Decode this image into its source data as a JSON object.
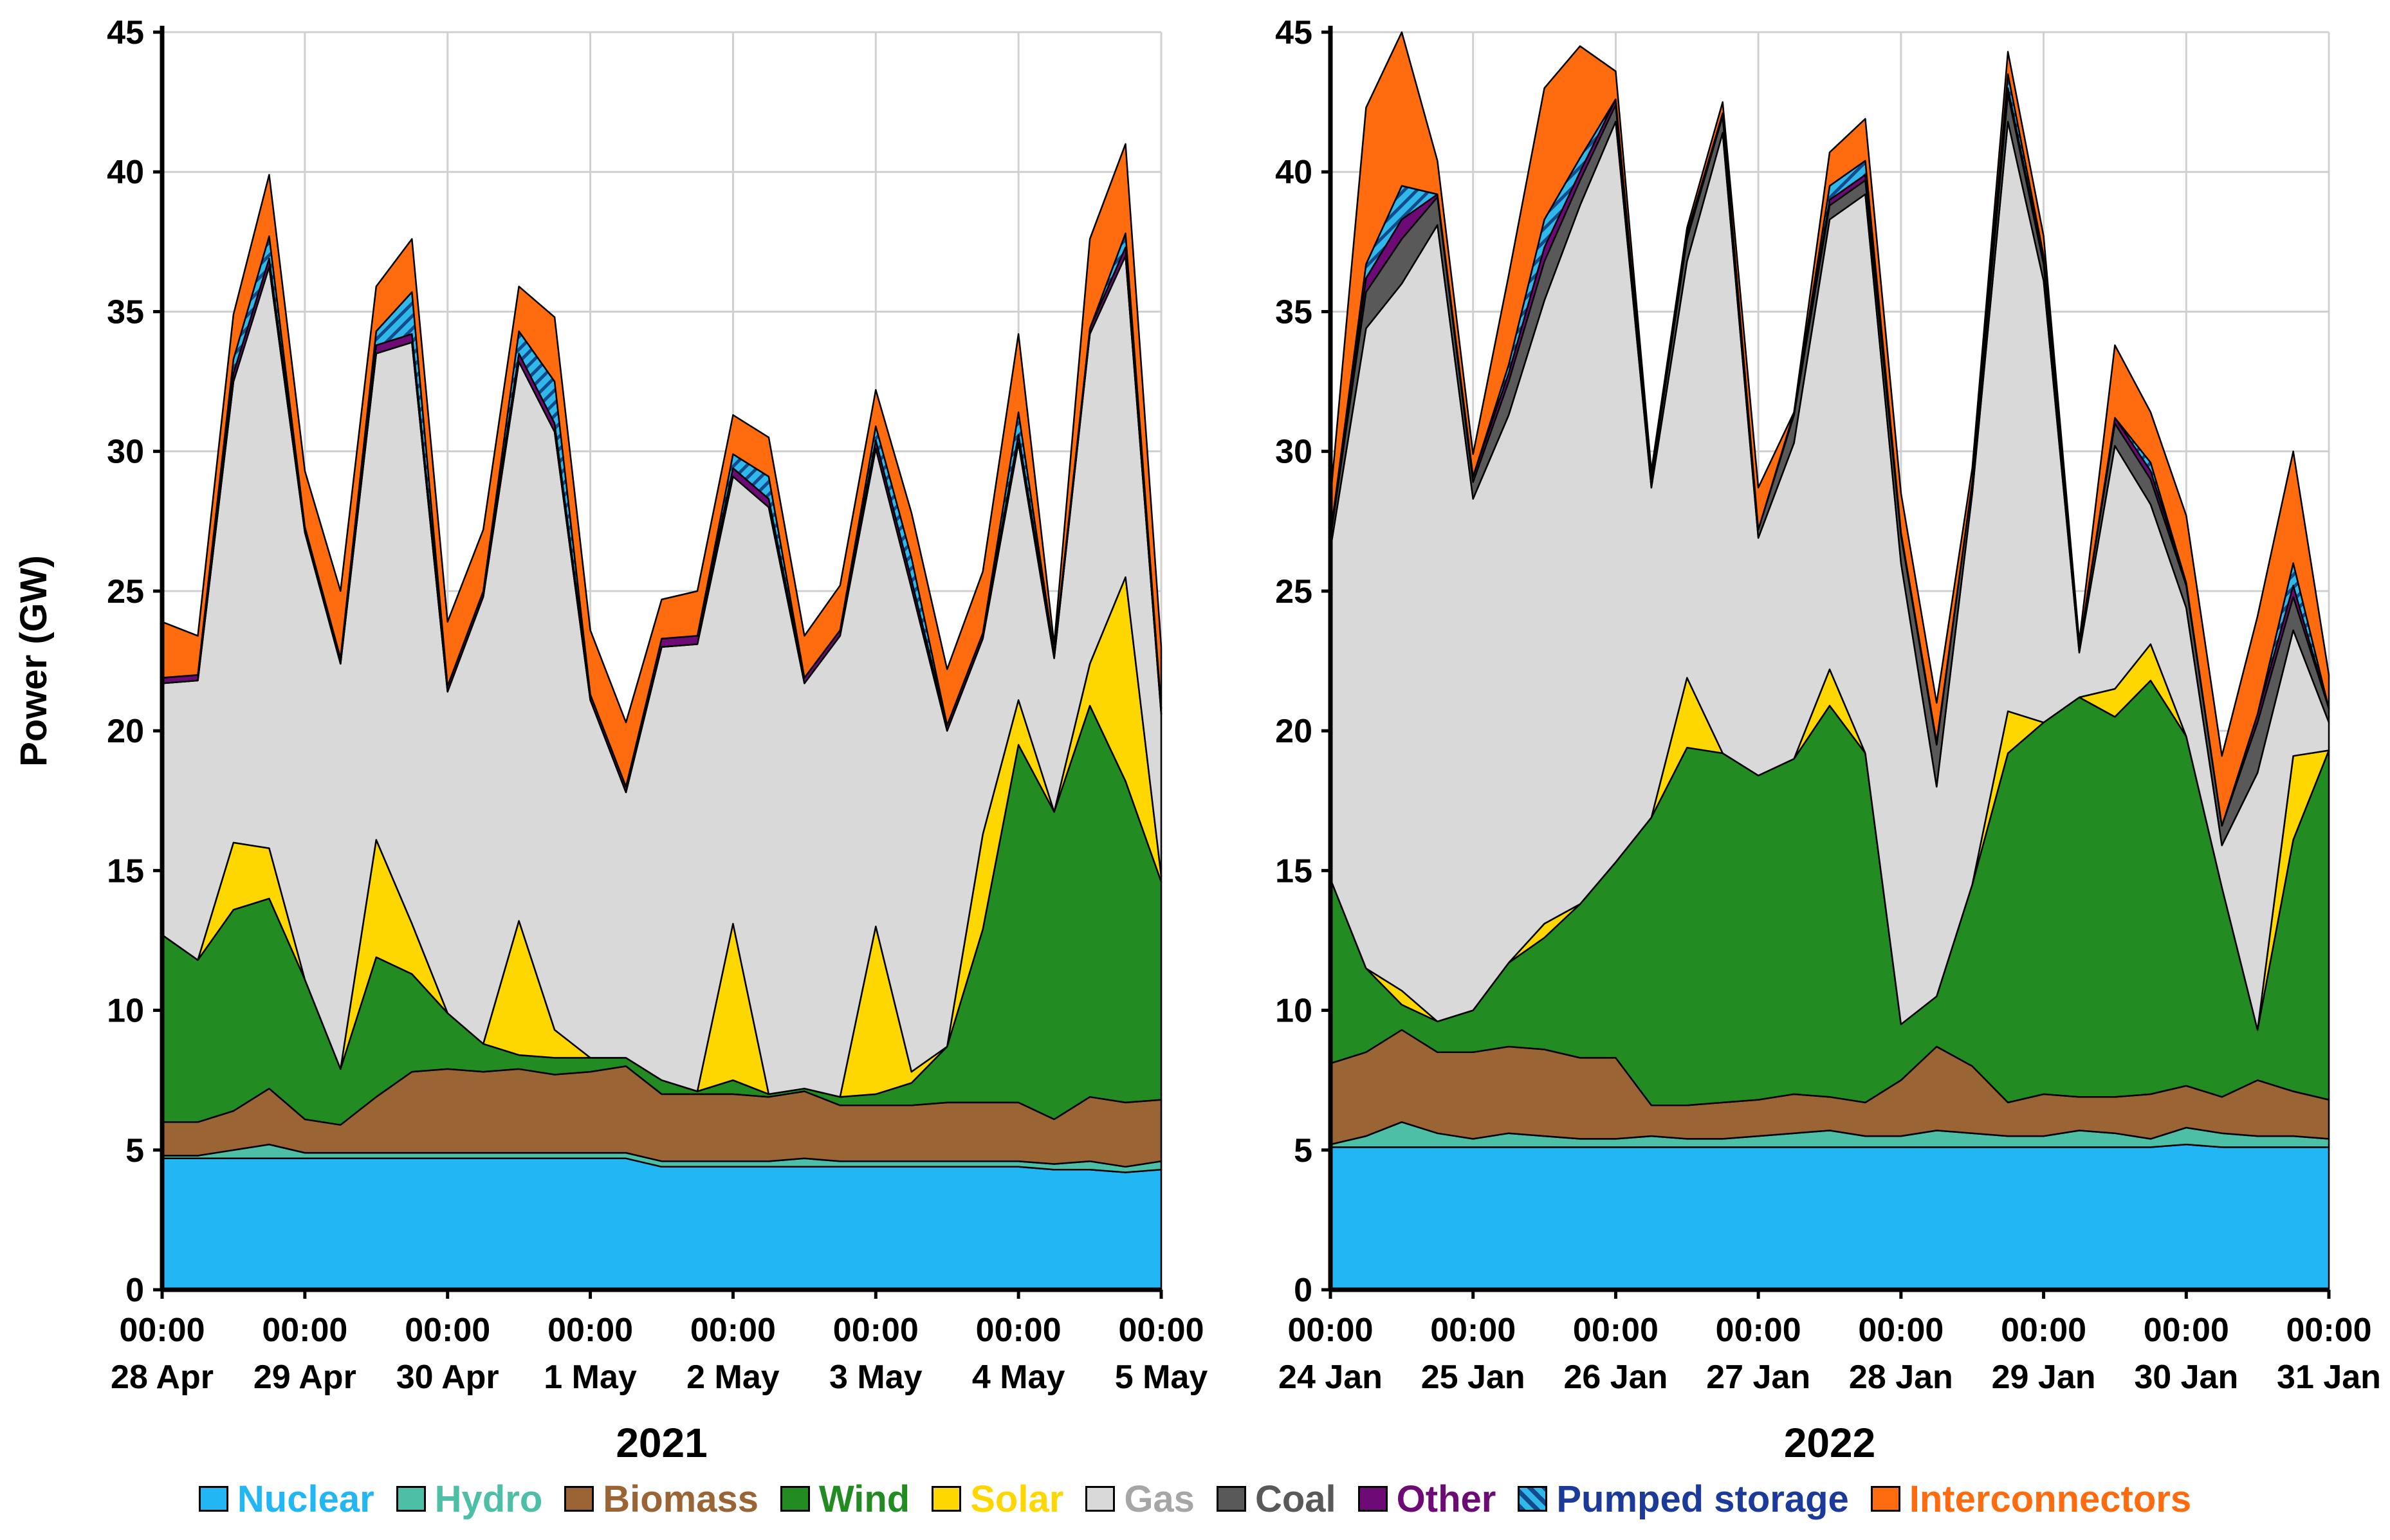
{
  "chart_data": [
    {
      "type": "area",
      "stacked": true,
      "title": "2021",
      "xlabel": "",
      "ylabel": "Power (GW)",
      "ylim": [
        0,
        45
      ],
      "yticks": [
        "0",
        "5",
        "10",
        "15",
        "20",
        "25",
        "30",
        "35",
        "40",
        "45"
      ],
      "x_ticks": [
        {
          "time": "00:00",
          "date": "28 Apr"
        },
        {
          "time": "00:00",
          "date": "29 Apr"
        },
        {
          "time": "00:00",
          "date": "30 Apr"
        },
        {
          "time": "00:00",
          "date": "1 May"
        },
        {
          "time": "00:00",
          "date": "2 May"
        },
        {
          "time": "00:00",
          "date": "3 May"
        },
        {
          "time": "00:00",
          "date": "4 May"
        },
        {
          "time": "00:00",
          "date": "5 May"
        }
      ],
      "x_hours": [
        0,
        6,
        12,
        18,
        24,
        30,
        36,
        42,
        48,
        54,
        60,
        66,
        72,
        78,
        84,
        90,
        96,
        102,
        108,
        114,
        120,
        126,
        132,
        138,
        144,
        150,
        156,
        162,
        168
      ],
      "series": [
        {
          "name": "Nuclear",
          "values": [
            4.7,
            4.7,
            4.7,
            4.7,
            4.7,
            4.7,
            4.7,
            4.7,
            4.7,
            4.7,
            4.7,
            4.7,
            4.7,
            4.7,
            4.4,
            4.4,
            4.4,
            4.4,
            4.4,
            4.4,
            4.4,
            4.4,
            4.4,
            4.4,
            4.4,
            4.3,
            4.3,
            4.2,
            4.3
          ]
        },
        {
          "name": "Hydro",
          "values": [
            0.1,
            0.1,
            0.3,
            0.5,
            0.2,
            0.2,
            0.2,
            0.2,
            0.2,
            0.2,
            0.2,
            0.2,
            0.2,
            0.2,
            0.2,
            0.2,
            0.2,
            0.2,
            0.3,
            0.2,
            0.2,
            0.2,
            0.2,
            0.2,
            0.2,
            0.2,
            0.3,
            0.2,
            0.3
          ]
        },
        {
          "name": "Biomass",
          "values": [
            1.2,
            1.2,
            1.4,
            2.0,
            1.2,
            1.0,
            2.0,
            2.9,
            3.0,
            2.9,
            3.0,
            2.8,
            2.9,
            3.1,
            2.4,
            2.4,
            2.4,
            2.3,
            2.4,
            2.0,
            2.0,
            2.0,
            2.1,
            2.1,
            2.1,
            1.6,
            2.3,
            2.3,
            2.2
          ]
        },
        {
          "name": "Wind",
          "values": [
            6.7,
            5.8,
            7.2,
            6.8,
            5.0,
            2.0,
            5.0,
            3.5,
            2.0,
            1.0,
            0.5,
            0.6,
            0.5,
            0.3,
            0.5,
            0.1,
            0.5,
            0.1,
            0.1,
            0.3,
            0.4,
            0.8,
            2.0,
            6.2,
            12.8,
            11.0,
            14.0,
            11.5,
            7.8
          ]
        },
        {
          "name": "Solar",
          "values": [
            0,
            0,
            2.4,
            1.8,
            0,
            0,
            4.2,
            1.8,
            0,
            0,
            4.8,
            1.0,
            0,
            0,
            0,
            0,
            5.6,
            0,
            0,
            0,
            6.0,
            0.4,
            0,
            3.4,
            1.6,
            0,
            1.5,
            7.3,
            0.2
          ]
        },
        {
          "name": "Gas",
          "values": [
            9.0,
            10.0,
            16.5,
            20.8,
            16.0,
            14.5,
            17.4,
            20.8,
            11.5,
            16.0,
            20.0,
            21.4,
            12.8,
            9.5,
            15.5,
            16.0,
            16.0,
            21.0,
            14.5,
            16.5,
            17.1,
            17.3,
            11.3,
            7.0,
            9.2,
            5.5,
            11.8,
            11.5,
            5.8
          ]
        },
        {
          "name": "Coal",
          "values": [
            0,
            0,
            0,
            0,
            0,
            0,
            0,
            0,
            0,
            0,
            0,
            0,
            0,
            0,
            0,
            0,
            0,
            0,
            0,
            0,
            0,
            0,
            0,
            0,
            0,
            0,
            0,
            0,
            0
          ]
        },
        {
          "name": "Other",
          "values": [
            0.2,
            0.2,
            0.3,
            0.3,
            0.2,
            0.2,
            0.3,
            0.3,
            0.2,
            0.2,
            0.3,
            0.3,
            0.2,
            0.2,
            0.3,
            0.3,
            0.3,
            0.3,
            0.2,
            0.2,
            0.3,
            0.3,
            0.2,
            0.2,
            0.3,
            0.2,
            0.2,
            0.3,
            0.2
          ]
        },
        {
          "name": "Pumped storage",
          "values": [
            0,
            0,
            0.5,
            0.8,
            0,
            0,
            0.5,
            1.5,
            0,
            0,
            0.8,
            1.5,
            0,
            0,
            0,
            0,
            0.5,
            0.8,
            0,
            0,
            0.5,
            0.8,
            0,
            0,
            0.8,
            0,
            0,
            0.5,
            0
          ]
        },
        {
          "name": "Interconnectors",
          "values": [
            2.0,
            1.4,
            1.6,
            2.2,
            2.0,
            2.4,
            1.6,
            1.9,
            2.3,
            2.2,
            1.6,
            2.3,
            2.3,
            2.3,
            1.4,
            1.6,
            1.4,
            1.4,
            1.5,
            1.6,
            1.3,
            1.6,
            2.0,
            2.2,
            2.8,
            0.3,
            3.2,
            3.2,
            2.2
          ]
        }
      ]
    },
    {
      "type": "area",
      "stacked": true,
      "title": "2022",
      "xlabel": "",
      "ylabel": "",
      "ylim": [
        0,
        45
      ],
      "yticks": [
        "0",
        "5",
        "10",
        "15",
        "20",
        "25",
        "30",
        "35",
        "40",
        "45"
      ],
      "x_ticks": [
        {
          "time": "00:00",
          "date": "24 Jan"
        },
        {
          "time": "00:00",
          "date": "25 Jan"
        },
        {
          "time": "00:00",
          "date": "26 Jan"
        },
        {
          "time": "00:00",
          "date": "27 Jan"
        },
        {
          "time": "00:00",
          "date": "28 Jan"
        },
        {
          "time": "00:00",
          "date": "29 Jan"
        },
        {
          "time": "00:00",
          "date": "30 Jan"
        },
        {
          "time": "00:00",
          "date": "31 Jan"
        }
      ],
      "x_hours": [
        0,
        6,
        12,
        18,
        24,
        30,
        36,
        42,
        48,
        54,
        60,
        66,
        72,
        78,
        84,
        90,
        96,
        102,
        108,
        114,
        120,
        126,
        132,
        138,
        144,
        150,
        156,
        162,
        168
      ],
      "series": [
        {
          "name": "Nuclear",
          "values": [
            5.1,
            5.1,
            5.1,
            5.1,
            5.1,
            5.1,
            5.1,
            5.1,
            5.1,
            5.1,
            5.1,
            5.1,
            5.1,
            5.1,
            5.1,
            5.1,
            5.1,
            5.1,
            5.1,
            5.1,
            5.1,
            5.1,
            5.1,
            5.1,
            5.2,
            5.1,
            5.1,
            5.1,
            5.1
          ]
        },
        {
          "name": "Hydro",
          "values": [
            0.1,
            0.4,
            0.9,
            0.5,
            0.3,
            0.5,
            0.4,
            0.3,
            0.3,
            0.4,
            0.3,
            0.3,
            0.4,
            0.5,
            0.6,
            0.4,
            0.4,
            0.6,
            0.5,
            0.4,
            0.4,
            0.6,
            0.5,
            0.3,
            0.6,
            0.5,
            0.4,
            0.4,
            0.3
          ]
        },
        {
          "name": "Biomass",
          "values": [
            2.9,
            3.0,
            3.3,
            2.9,
            3.1,
            3.1,
            3.1,
            2.9,
            2.9,
            1.1,
            1.2,
            1.3,
            1.3,
            1.4,
            1.2,
            1.2,
            2.0,
            3.0,
            2.4,
            1.2,
            1.5,
            1.2,
            1.3,
            1.6,
            1.5,
            1.3,
            2.0,
            1.6,
            1.4
          ]
        },
        {
          "name": "Wind",
          "values": [
            6.6,
            3.0,
            0.9,
            1.1,
            1.5,
            3.0,
            4.0,
            5.5,
            7.0,
            10.3,
            12.8,
            12.5,
            11.6,
            12.0,
            14.0,
            12.5,
            2.0,
            1.8,
            6.5,
            12.5,
            13.3,
            14.3,
            13.6,
            14.8,
            12.5,
            7.5,
            1.8,
            9.0,
            12.5
          ]
        },
        {
          "name": "Solar",
          "values": [
            0,
            0,
            0.5,
            0,
            0,
            0,
            0.5,
            0,
            0,
            0,
            2.5,
            0,
            0,
            0,
            1.3,
            0,
            0,
            0,
            0,
            1.5,
            0,
            0,
            1.0,
            1.3,
            0,
            0,
            0,
            3.0,
            0
          ]
        },
        {
          "name": "Gas",
          "values": [
            11.8,
            22.9,
            25.3,
            28.5,
            18.3,
            19.6,
            22.3,
            25.0,
            26.5,
            11.8,
            14.9,
            22.2,
            8.5,
            11.3,
            16.1,
            20.0,
            16.5,
            7.5,
            14.0,
            21.1,
            15.8,
            1.6,
            8.7,
            5.0,
            4.6,
            1.5,
            9.2,
            4.5,
            1.0
          ]
        },
        {
          "name": "Coal",
          "values": [
            0.4,
            1.3,
            1.6,
            1.0,
            0.6,
            1.2,
            1.4,
            0.9,
            0.6,
            0.3,
            0.8,
            0.6,
            0.3,
            1.0,
            0.5,
            0.5,
            1.0,
            1.5,
            0.4,
            1.0,
            0.6,
            0.2,
            0.8,
            0.9,
            0.8,
            0.7,
            1.8,
            1.2,
            0.5
          ]
        },
        {
          "name": "Other",
          "values": [
            0.1,
            0.5,
            0.7,
            0.1,
            0.2,
            0.3,
            0.5,
            0.3,
            0.2,
            0,
            0.2,
            0.1,
            0,
            0.1,
            0.2,
            0.2,
            0.1,
            0.1,
            0,
            0.2,
            0.1,
            0,
            0.2,
            0.3,
            0.1,
            0,
            0.3,
            0.4,
            0
          ]
        },
        {
          "name": "Pumped storage",
          "values": [
            0,
            0.5,
            1.2,
            0,
            0,
            0.3,
            1.0,
            0.5,
            0,
            0,
            0,
            0,
            0,
            0,
            0.5,
            0.5,
            0,
            0,
            0,
            0.5,
            0.2,
            0,
            0,
            0.3,
            0,
            0,
            0,
            0.8,
            0
          ]
        },
        {
          "name": "Interconnectors",
          "values": [
            1.3,
            5.6,
            5.5,
            1.2,
            0.8,
            3.2,
            4.7,
            4.0,
            1.0,
            0.3,
            0.2,
            0.4,
            1.5,
            0,
            1.2,
            1.5,
            1.4,
            1.4,
            0.5,
            0.8,
            0.7,
            0.2,
            2.6,
            1.8,
            2.4,
            2.5,
            3.5,
            4.0,
            1.2
          ]
        }
      ]
    }
  ],
  "legend": [
    {
      "name": "Nuclear",
      "fill": "#23b6f5",
      "text_color": "#23b6f5"
    },
    {
      "name": "Hydro",
      "fill": "#4dbfa6",
      "text_color": "#4dbfa6"
    },
    {
      "name": "Biomass",
      "fill": "#9a6434",
      "text_color": "#9a6434"
    },
    {
      "name": "Wind",
      "fill": "#228b22",
      "text_color": "#228b22"
    },
    {
      "name": "Solar",
      "fill": "#ffd700",
      "text_color": "#ffd700"
    },
    {
      "name": "Gas",
      "fill": "#d9d9d9",
      "text_color": "#a6a6a6"
    },
    {
      "name": "Coal",
      "fill": "#595959",
      "text_color": "#595959"
    },
    {
      "name": "Other",
      "fill": "#6d0a75",
      "text_color": "#6d0a75"
    },
    {
      "name": "Pumped storage",
      "fill": "#30b8ea",
      "text_color": "#1b3a9a",
      "hatch": true
    },
    {
      "name": "Interconnectors",
      "fill": "#ff6c10",
      "text_color": "#ff6c10"
    }
  ]
}
